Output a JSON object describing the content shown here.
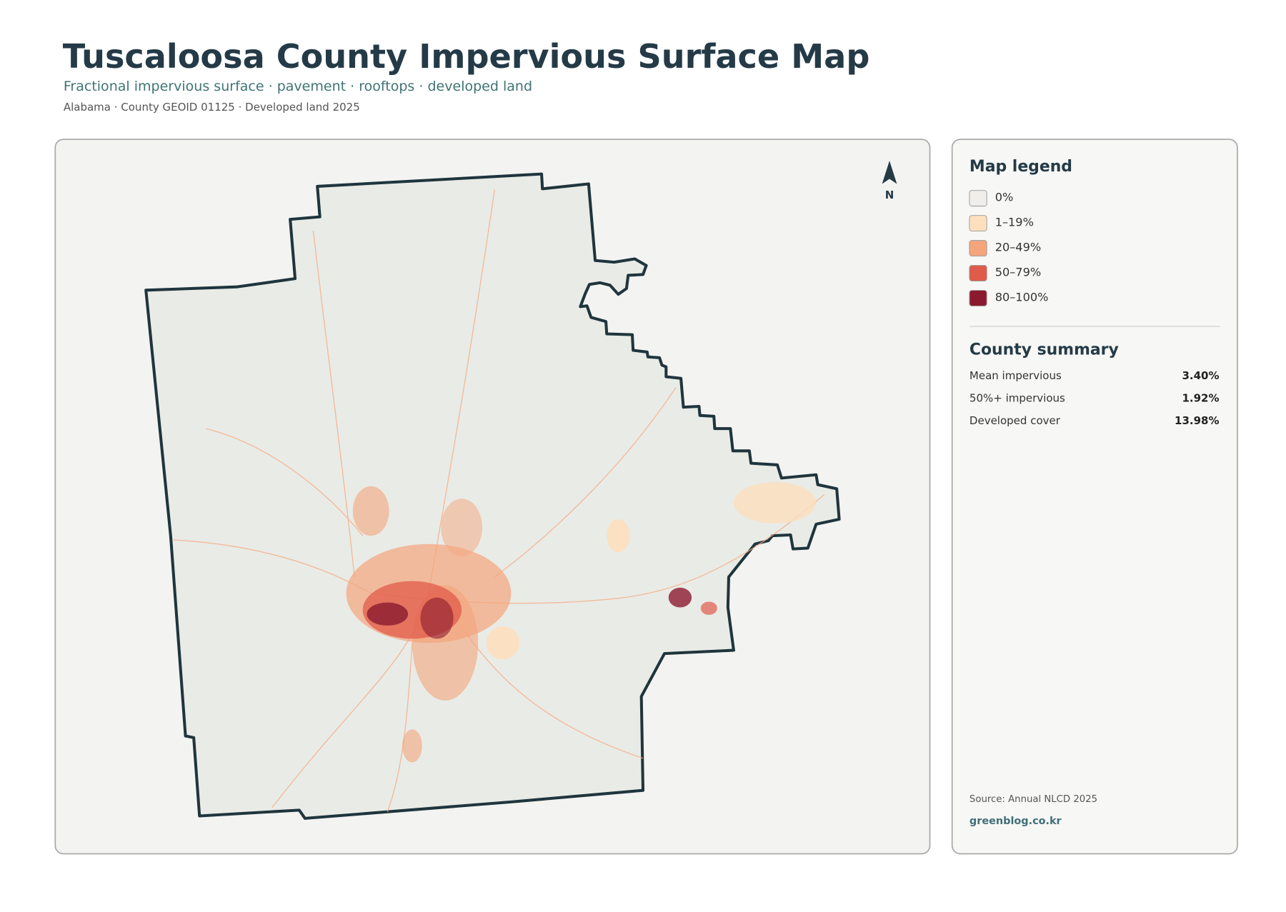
{
  "header": {
    "title": "Tuscaloosa County Impervious Surface Map",
    "subtitle": "Fractional impervious surface · pavement · rooftops · developed land",
    "meta": "Alabama · County GEOID 01125 · Developed land 2025"
  },
  "north": "N",
  "legend": {
    "title": "Map legend",
    "items": [
      {
        "label": "0%",
        "color": "#efeeea"
      },
      {
        "label": "1–19%",
        "color": "#fddfbe"
      },
      {
        "label": "20–49%",
        "color": "#f4a57c"
      },
      {
        "label": "50–79%",
        "color": "#e05b4a"
      },
      {
        "label": "80–100%",
        "color": "#8b1a2f"
      }
    ]
  },
  "summary": {
    "title": "County summary",
    "rows": [
      {
        "label": "Mean impervious",
        "value": "3.40%"
      },
      {
        "label": "50%+ impervious",
        "value": "1.92%"
      },
      {
        "label": "Developed cover",
        "value": "13.98%"
      }
    ]
  },
  "footer": {
    "source": "Source: Annual NLCD 2025",
    "credit": "greenblog.co.kr"
  }
}
